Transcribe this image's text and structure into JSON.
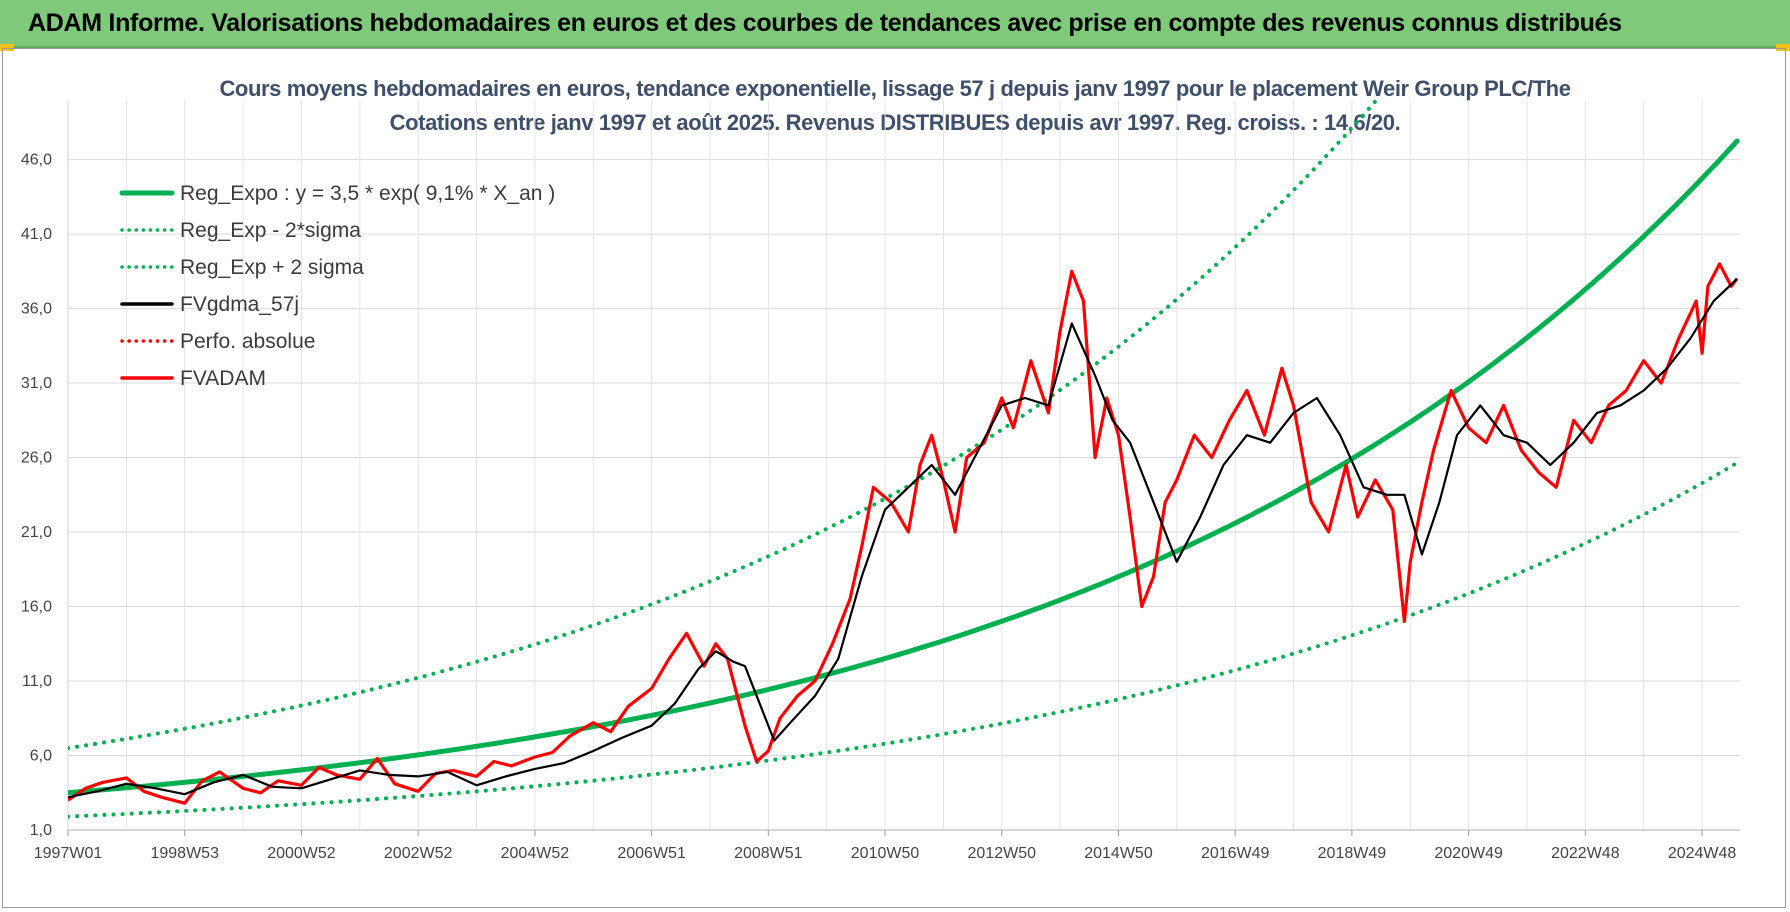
{
  "header": {
    "title": "ADAM Informe. Valorisations hebdomadaires en euros et des courbes de tendances avec prise en compte des revenus connus distribués",
    "background": "#7fc97a"
  },
  "chart_data": {
    "type": "line",
    "title_line1": "Cours moyens hebdomadaires en euros, tendance exponentielle, lissage 57 j depuis janv 1997 pour le placement Weir Group PLC/The",
    "title_line2": "Cotations entre janv 1997 et août 2025.  Revenus DISTRIBUES depuis avr 1997. Reg. croiss. : 14,6/20.",
    "xlabel": "",
    "ylabel": "",
    "ylim": [
      1,
      50
    ],
    "xlim": [
      1997.0,
      2025.65
    ],
    "grid": true,
    "legend_position": "top-left",
    "y_ticks": [
      "1,0",
      "6,0",
      "11,0",
      "16,0",
      "21,0",
      "26,0",
      "31,0",
      "36,0",
      "41,0",
      "46,0"
    ],
    "y_tick_values": [
      1,
      6,
      11,
      16,
      21,
      26,
      31,
      36,
      41,
      46
    ],
    "x_ticks": [
      "1997W01",
      "1998W53",
      "2000W52",
      "2002W52",
      "2004W52",
      "2006W51",
      "2008W51",
      "2010W50",
      "2012W50",
      "2014W50",
      "2016W49",
      "2018W49",
      "2020W49",
      "2022W48",
      "2024W48"
    ],
    "x_tick_values": [
      1997.0,
      1999.0,
      2001.0,
      2003.0,
      2005.0,
      2007.0,
      2009.0,
      2011.0,
      2013.0,
      2015.0,
      2017.0,
      2019.0,
      2021.0,
      2023.0,
      2025.0
    ],
    "series": [
      {
        "name": "Reg_Expo : y = 3,5 * exp( 9,1% *  X_an )",
        "color": "#00b050",
        "style": "solid",
        "model": {
          "a": 3.5,
          "rate": 0.091
        }
      },
      {
        "name": "Reg_Exp - 2*sigma",
        "color": "#00b050",
        "style": "dotted",
        "model": {
          "a": 1.9,
          "rate": 0.091
        }
      },
      {
        "name": "Reg_Exp + 2 sigma",
        "color": "#00b050",
        "style": "dotted",
        "model": {
          "a": 6.5,
          "rate": 0.091
        }
      },
      {
        "name": "FVgdma_57j",
        "color": "#000000",
        "style": "solid",
        "x": [
          1997.0,
          1997.5,
          1998.0,
          1998.5,
          1999.0,
          1999.5,
          2000.0,
          2000.5,
          2001.0,
          2001.5,
          2002.0,
          2002.5,
          2003.0,
          2003.5,
          2004.0,
          2004.5,
          2005.0,
          2005.5,
          2006.0,
          2006.5,
          2007.0,
          2007.4,
          2007.8,
          2008.1,
          2008.4,
          2008.6,
          2008.9,
          2009.1,
          2009.4,
          2009.8,
          2010.2,
          2010.6,
          2011.0,
          2011.4,
          2011.8,
          2012.2,
          2012.6,
          2013.0,
          2013.4,
          2013.8,
          2014.2,
          2014.6,
          2014.9,
          2015.2,
          2015.6,
          2016.0,
          2016.4,
          2016.8,
          2017.2,
          2017.6,
          2018.0,
          2018.4,
          2018.8,
          2019.2,
          2019.6,
          2019.9,
          2020.2,
          2020.5,
          2020.8,
          2021.2,
          2021.6,
          2022.0,
          2022.4,
          2022.8,
          2023.2,
          2023.6,
          2024.0,
          2024.4,
          2024.8,
          2025.2,
          2025.6
        ],
        "y": [
          3.2,
          3.6,
          4.1,
          3.8,
          3.4,
          4.2,
          4.7,
          3.9,
          3.8,
          4.4,
          5.0,
          4.7,
          4.6,
          4.9,
          4.0,
          4.6,
          5.1,
          5.5,
          6.3,
          7.2,
          8.0,
          9.5,
          11.8,
          13.0,
          12.3,
          12.0,
          9.0,
          7.0,
          8.3,
          10.0,
          12.5,
          18.0,
          22.5,
          24.0,
          25.5,
          23.5,
          26.5,
          29.5,
          30.0,
          29.5,
          35.0,
          31.5,
          28.5,
          27.0,
          23.0,
          19.0,
          22.0,
          25.5,
          27.5,
          27.0,
          29.0,
          30.0,
          27.5,
          24.0,
          23.5,
          23.5,
          19.5,
          23.0,
          27.5,
          29.5,
          27.5,
          27.0,
          25.5,
          27.0,
          29.0,
          29.5,
          30.5,
          32.0,
          34.0,
          36.5,
          38.0
        ]
      },
      {
        "name": "Perfo. absolue",
        "color": "#ff0000",
        "style": "dotted"
      },
      {
        "name": "FVADAM",
        "color": "#ff0000",
        "style": "solid",
        "x": [
          1997.0,
          1997.3,
          1997.6,
          1998.0,
          1998.3,
          1998.6,
          1999.0,
          1999.3,
          1999.6,
          2000.0,
          2000.3,
          2000.6,
          2001.0,
          2001.3,
          2001.6,
          2002.0,
          2002.3,
          2002.6,
          2003.0,
          2003.3,
          2003.6,
          2004.0,
          2004.3,
          2004.6,
          2005.0,
          2005.3,
          2005.6,
          2006.0,
          2006.3,
          2006.6,
          2007.0,
          2007.3,
          2007.6,
          2007.9,
          2008.1,
          2008.3,
          2008.6,
          2008.8,
          2009.0,
          2009.2,
          2009.5,
          2009.8,
          2010.1,
          2010.4,
          2010.6,
          2010.8,
          2011.1,
          2011.4,
          2011.6,
          2011.8,
          2012.0,
          2012.2,
          2012.4,
          2012.7,
          2013.0,
          2013.2,
          2013.5,
          2013.8,
          2014.0,
          2014.2,
          2014.4,
          2014.6,
          2014.8,
          2015.0,
          2015.2,
          2015.4,
          2015.6,
          2015.8,
          2016.0,
          2016.3,
          2016.6,
          2016.9,
          2017.2,
          2017.5,
          2017.8,
          2018.0,
          2018.3,
          2018.6,
          2018.9,
          2019.1,
          2019.4,
          2019.7,
          2019.9,
          2020.0,
          2020.2,
          2020.4,
          2020.7,
          2021.0,
          2021.3,
          2021.6,
          2021.9,
          2022.2,
          2022.5,
          2022.8,
          2023.1,
          2023.4,
          2023.7,
          2024.0,
          2024.3,
          2024.6,
          2024.9,
          2025.0,
          2025.1,
          2025.3,
          2025.5,
          2025.6
        ],
        "y": [
          3.0,
          3.8,
          4.2,
          4.5,
          3.6,
          3.2,
          2.8,
          4.3,
          4.9,
          3.8,
          3.5,
          4.3,
          4.0,
          5.2,
          4.7,
          4.4,
          5.8,
          4.1,
          3.6,
          4.8,
          5.0,
          4.6,
          5.6,
          5.3,
          5.9,
          6.2,
          7.3,
          8.2,
          7.6,
          9.3,
          10.5,
          12.5,
          14.2,
          12.0,
          13.5,
          12.5,
          8.0,
          5.6,
          6.3,
          8.5,
          10.0,
          11.0,
          13.5,
          16.5,
          20.0,
          24.0,
          23.0,
          21.0,
          25.5,
          27.5,
          24.5,
          21.0,
          26.0,
          27.0,
          30.0,
          28.0,
          32.5,
          29.0,
          34.5,
          38.5,
          36.5,
          26.0,
          30.0,
          27.5,
          22.0,
          16.0,
          18.0,
          23.0,
          24.5,
          27.5,
          26.0,
          28.5,
          30.5,
          27.5,
          32.0,
          29.5,
          23.0,
          21.0,
          25.5,
          22.0,
          24.5,
          22.5,
          15.0,
          19.0,
          23.0,
          26.5,
          30.5,
          28.0,
          27.0,
          29.5,
          26.5,
          25.0,
          24.0,
          28.5,
          27.0,
          29.5,
          30.5,
          32.5,
          31.0,
          34.0,
          36.5,
          33.0,
          37.5,
          39.0,
          37.5,
          38.0
        ]
      }
    ]
  },
  "legend": {
    "items": [
      "Reg_Expo : y = 3,5 * exp( 9,1% *  X_an )",
      "Reg_Exp - 2*sigma",
      "Reg_Exp + 2 sigma",
      "FVgdma_57j",
      "Perfo. absolue",
      "FVADAM"
    ]
  }
}
